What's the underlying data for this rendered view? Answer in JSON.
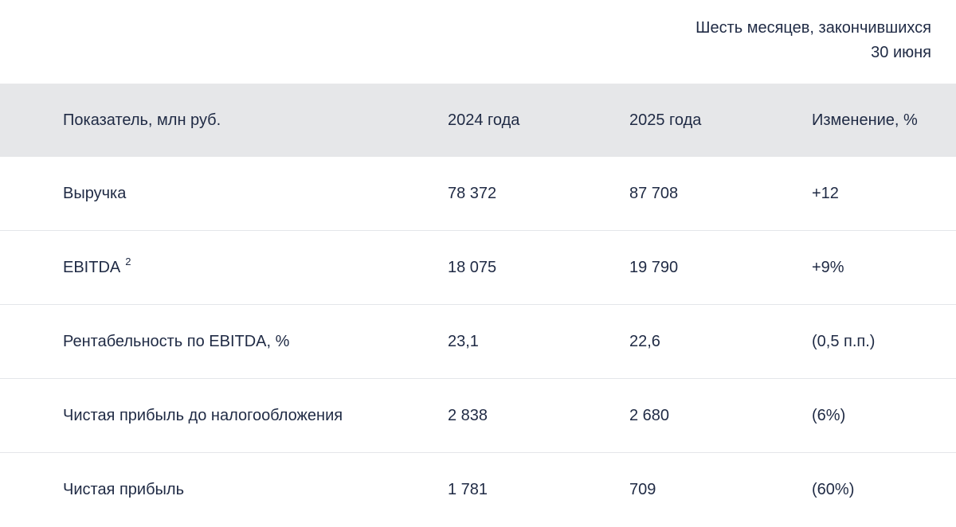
{
  "period": {
    "line1": "Шесть месяцев, закончившихся",
    "line2": "30 июня"
  },
  "columns": [
    "Показатель, млн руб.",
    "2024 года",
    "2025 года",
    "Изменение, %"
  ],
  "rows": [
    {
      "label": "Выручка",
      "note": "",
      "y2024": "78 372",
      "y2025": "87 708",
      "change": "+12"
    },
    {
      "label": "EBITDA",
      "note": "2",
      "y2024": "18 075",
      "y2025": "19 790",
      "change": "+9%"
    },
    {
      "label": "Рентабельность по EBITDA, %",
      "note": "",
      "y2024": "23,1",
      "y2025": "22,6",
      "change": "(0,5 п.п.)"
    },
    {
      "label": "Чистая прибыль до налогообложения",
      "note": "",
      "y2024": "2 838",
      "y2025": "2 680",
      "change": "(6%)"
    },
    {
      "label": "Чистая прибыль",
      "note": "",
      "y2024": "1 781",
      "y2025": "709",
      "change": "(60%)"
    }
  ]
}
